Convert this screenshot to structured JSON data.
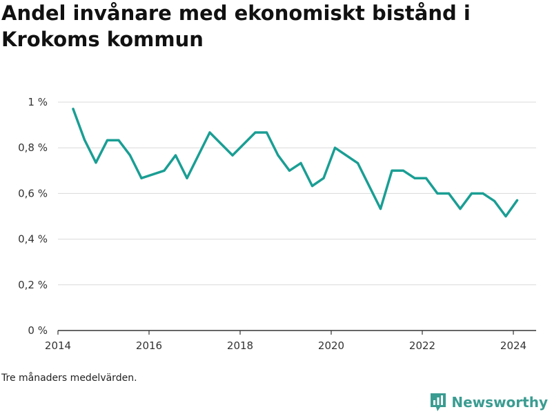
{
  "title": "Andel invånare med ekonomiskt bistånd i Krokoms kommun",
  "note": "Tre månaders medelvärden.",
  "brand": {
    "name": "Newsworthy",
    "icon": "newsworthy-logo-icon",
    "color": "#3a9c91"
  },
  "chart_data": {
    "type": "line",
    "title": "Andel invånare med ekonomiskt bistånd i Krokoms kommun",
    "xlabel": "",
    "ylabel": "",
    "x_ticks": [
      "2014",
      "2016",
      "2018",
      "2020",
      "2022",
      "2024"
    ],
    "y_ticks": [
      "0 %",
      "0,2 %",
      "0,4 %",
      "0,6 %",
      "0,8 %",
      "1 %"
    ],
    "ylim": [
      0,
      1
    ],
    "xlim": [
      "2014-01",
      "2024-06"
    ],
    "grid": true,
    "line_color": "#1a9e94",
    "series": [
      {
        "name": "",
        "points": [
          [
            "2014-05",
            0.97
          ],
          [
            "2014-08",
            0.835
          ],
          [
            "2014-11",
            0.735
          ],
          [
            "2015-02",
            0.833
          ],
          [
            "2015-05",
            0.833
          ],
          [
            "2015-08",
            0.767
          ],
          [
            "2015-11",
            0.667
          ],
          [
            "2016-05",
            0.7
          ],
          [
            "2016-08",
            0.767
          ],
          [
            "2016-11",
            0.667
          ],
          [
            "2017-05",
            0.867
          ],
          [
            "2017-11",
            0.767
          ],
          [
            "2018-05",
            0.867
          ],
          [
            "2018-08",
            0.867
          ],
          [
            "2018-11",
            0.767
          ],
          [
            "2019-02",
            0.7
          ],
          [
            "2019-05",
            0.733
          ],
          [
            "2019-08",
            0.633
          ],
          [
            "2019-11",
            0.667
          ],
          [
            "2020-02",
            0.8
          ],
          [
            "2020-08",
            0.733
          ],
          [
            "2021-02",
            0.533
          ],
          [
            "2021-05",
            0.7
          ],
          [
            "2021-08",
            0.7
          ],
          [
            "2021-11",
            0.667
          ],
          [
            "2022-02",
            0.667
          ],
          [
            "2022-05",
            0.6
          ],
          [
            "2022-08",
            0.6
          ],
          [
            "2022-11",
            0.533
          ],
          [
            "2023-02",
            0.6
          ],
          [
            "2023-05",
            0.6
          ],
          [
            "2023-08",
            0.567
          ],
          [
            "2023-11",
            0.5
          ],
          [
            "2024-02",
            0.57
          ]
        ]
      }
    ]
  }
}
